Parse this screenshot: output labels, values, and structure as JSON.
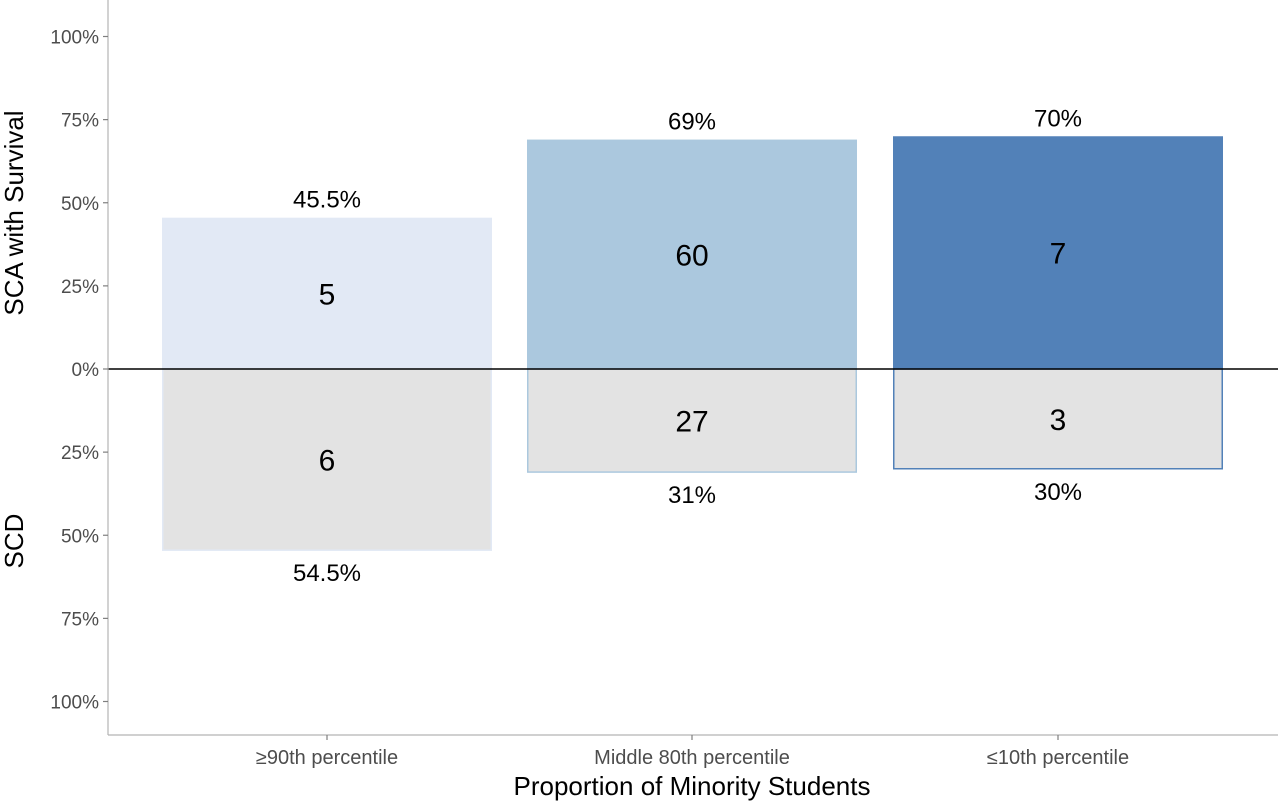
{
  "chart_data": {
    "type": "bar",
    "xlabel": "Proportion of Minority Students",
    "ylabel_upper": "SCA with Survival",
    "ylabel_lower": "SCD",
    "ylim": [
      -100,
      100
    ],
    "yticks": [
      {
        "value": 100,
        "label": "100%"
      },
      {
        "value": 75,
        "label": "75%"
      },
      {
        "value": 50,
        "label": "50%"
      },
      {
        "value": 25,
        "label": "25%"
      },
      {
        "value": 0,
        "label": "0%"
      },
      {
        "value": -25,
        "label": "25%"
      },
      {
        "value": -50,
        "label": "50%"
      },
      {
        "value": -75,
        "label": "75%"
      },
      {
        "value": -100,
        "label": "100%"
      }
    ],
    "categories": [
      "≥90th percentile",
      "Middle 80th percentile",
      "≤10th percentile"
    ],
    "series": [
      {
        "name": "SCA with Survival",
        "values": [
          45.5,
          69,
          70
        ],
        "pct_labels": [
          "45.5%",
          "69%",
          "70%"
        ],
        "counts": [
          "5",
          "60",
          "7"
        ],
        "colors": [
          "#e2e9f5",
          "#abc8de",
          "#5281b8"
        ]
      },
      {
        "name": "SCD",
        "values": [
          54.5,
          31,
          30
        ],
        "pct_labels": [
          "54.5%",
          "31%",
          "30%"
        ],
        "counts": [
          "6",
          "27",
          "3"
        ],
        "fill": "#e3e3e3",
        "outline_colors": [
          "#e2e9f5",
          "#abc8de",
          "#5281b8"
        ]
      }
    ],
    "grid": false,
    "legend": "none"
  }
}
